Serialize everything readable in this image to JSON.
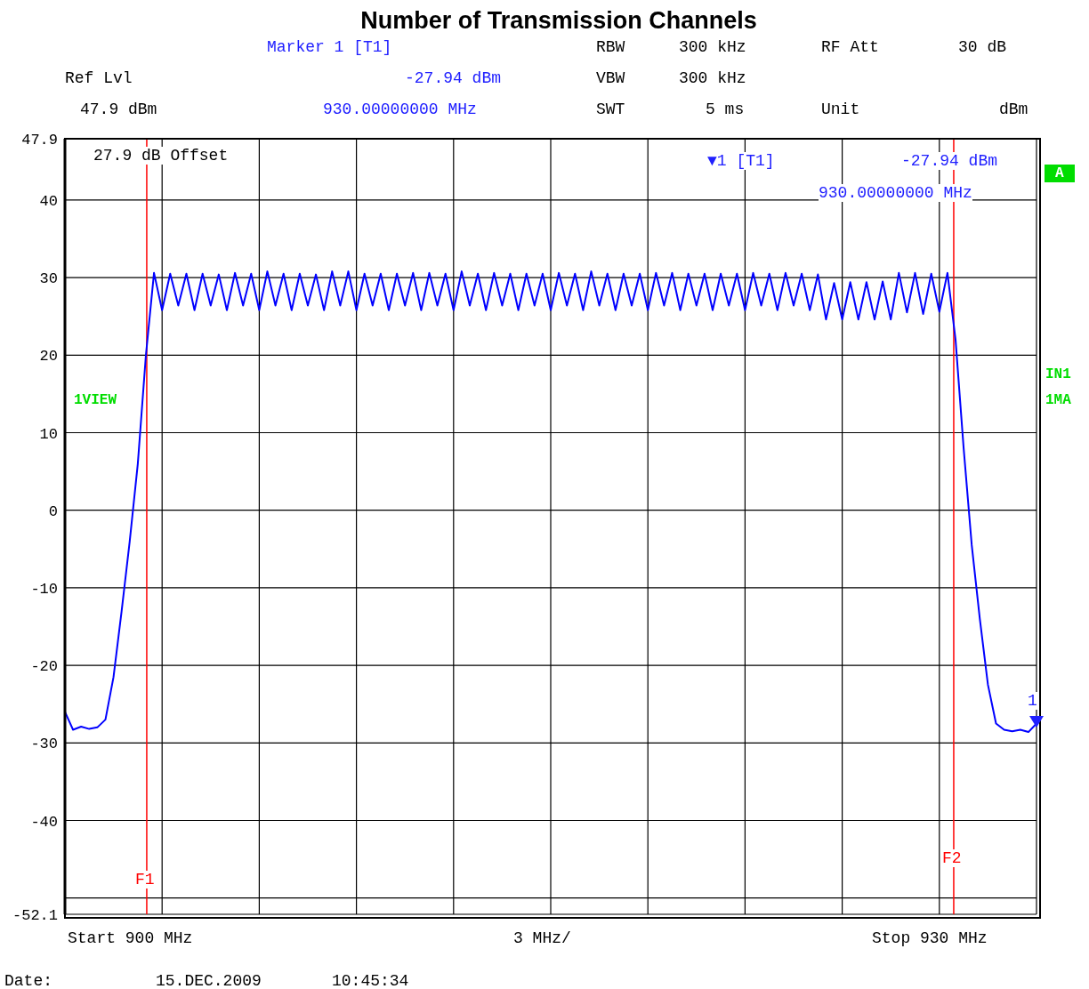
{
  "chart_data": {
    "type": "line",
    "title": "Number of Transmission Channels",
    "annotations": [
      "1",
      "Marker 1 [T1]",
      "RBW",
      "300 kHz",
      "RF Att",
      "30 dB",
      "Ref Lvl",
      "-27.94 dBm",
      "VBW",
      "300 kHz",
      "47.9 dBm",
      "930.00000000 MHz",
      "SWT",
      "5 ms",
      "Unit",
      "dBm",
      "27.9 dB Offset",
      "▼1 [T1]",
      "-27.94 dBm",
      "930.00000000 MHz",
      "A",
      "1VIEW",
      "IN1",
      "1MA",
      "Start 900 MHz",
      "3 MHz/",
      "Stop 930 MHz",
      "Date:",
      "15.DEC.2009",
      "10:45:34",
      "F1",
      "F2"
    ],
    "ylim": [
      -52.1,
      47.9
    ],
    "yticks": [
      47.9,
      40,
      30,
      20,
      10,
      0,
      -10,
      -20,
      -30,
      -40,
      {
        "value": -50,
        "label": null
      },
      -52.1
    ],
    "categories": [
      null,
      null,
      null,
      null,
      null,
      null,
      null,
      null,
      null,
      null,
      null,
      null,
      null,
      null,
      null,
      null,
      null,
      null,
      null,
      null,
      null,
      null,
      null,
      null,
      null,
      null,
      null,
      null,
      null,
      null,
      null,
      null,
      null,
      null,
      null,
      null,
      null,
      null,
      null,
      null,
      null,
      null,
      null,
      null,
      null,
      null,
      null,
      null,
      null,
      null,
      null,
      null,
      null,
      null,
      null,
      null,
      null,
      null,
      null,
      null,
      null,
      null,
      null,
      null,
      null,
      null,
      null,
      null,
      null,
      null,
      null,
      null,
      null,
      null,
      null,
      null,
      null,
      null,
      null,
      null,
      null,
      null,
      null,
      null,
      null,
      null,
      null,
      null,
      null,
      null,
      null,
      null,
      null,
      null,
      null,
      null,
      null,
      null,
      null,
      null,
      null,
      null,
      null,
      null,
      null,
      null,
      null,
      null,
      null,
      null,
      null,
      null,
      null,
      null,
      null,
      null,
      null,
      null,
      null,
      null,
      null
    ],
    "tick_labels": "y",
    "grid": true,
    "legend": false,
    "series": [
      {
        "color": "#0000ff",
        "marker": "none",
        "line_style": "solid",
        "values": [
          -26.0,
          -28.3,
          -27.9,
          -28.2,
          -28.0,
          -27.0,
          -21.5,
          -13,
          -4,
          6,
          20,
          30.6,
          25.8,
          30.5,
          26.4,
          30.5,
          25.8,
          30.5,
          26.4,
          30.4,
          25.8,
          30.6,
          26.4,
          30.5,
          25.8,
          30.8,
          26.4,
          30.5,
          25.8,
          30.5,
          26.4,
          30.4,
          25.8,
          30.8,
          26.4,
          30.8,
          25.8,
          30.5,
          26.4,
          30.5,
          25.8,
          30.5,
          26.4,
          30.6,
          25.8,
          30.6,
          26.4,
          30.5,
          25.8,
          30.8,
          26.4,
          30.5,
          25.8,
          30.6,
          26.4,
          30.5,
          25.8,
          30.5,
          26.4,
          30.5,
          25.8,
          30.6,
          26.4,
          30.5,
          25.8,
          30.8,
          26.4,
          30.5,
          25.8,
          30.5,
          26.4,
          30.5,
          25.8,
          30.6,
          26.4,
          30.6,
          25.8,
          30.5,
          26.4,
          30.5,
          25.8,
          30.5,
          26.4,
          30.5,
          25.8,
          30.6,
          26.4,
          30.5,
          25.8,
          30.6,
          26.4,
          30.5,
          25.8,
          30.4,
          24.6,
          29.3,
          24.6,
          29.4,
          24.6,
          29.4,
          24.6,
          29.5,
          24.6,
          30.6,
          25.5,
          30.6,
          25.3,
          30.5,
          25.6,
          30.6,
          22,
          8,
          -4.5,
          -14,
          -22.5,
          -27.5,
          -28.3,
          -28.5,
          -28.3,
          -28.6,
          -27.5
        ]
      }
    ]
  }
}
